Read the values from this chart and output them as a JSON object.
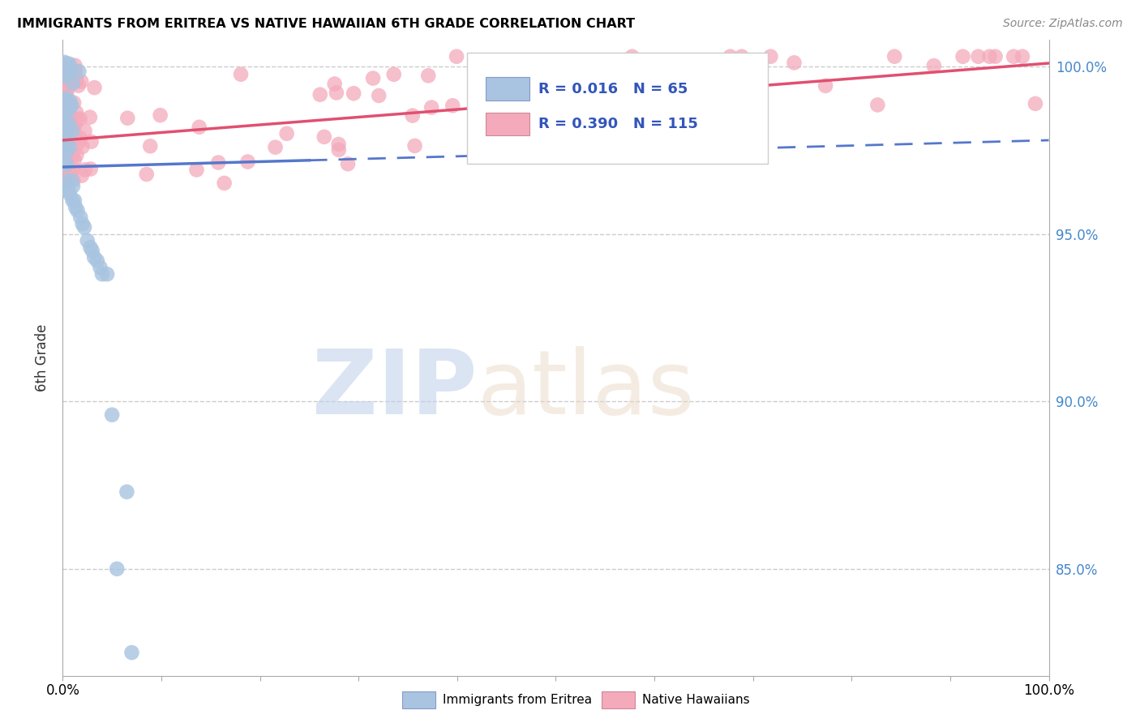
{
  "title": "IMMIGRANTS FROM ERITREA VS NATIVE HAWAIIAN 6TH GRADE CORRELATION CHART",
  "source": "Source: ZipAtlas.com",
  "ylabel": "6th Grade",
  "ytick_labels": [
    "85.0%",
    "90.0%",
    "95.0%",
    "100.0%"
  ],
  "ytick_values": [
    0.85,
    0.9,
    0.95,
    1.0
  ],
  "xlim": [
    0.0,
    1.0
  ],
  "ylim": [
    0.818,
    1.008
  ],
  "legend_r_blue": "0.016",
  "legend_n_blue": "65",
  "legend_r_pink": "0.390",
  "legend_n_pink": "115",
  "legend_label_blue": "Immigrants from Eritrea",
  "legend_label_pink": "Native Hawaiians",
  "blue_color": "#A8C4E0",
  "pink_color": "#F4AABB",
  "blue_line_color": "#5577CC",
  "pink_line_color": "#E05070",
  "grid_color": "#CCCCCC",
  "blue_line_solid_end": 0.25,
  "blue_line_start_y": 0.97,
  "blue_line_end_y": 0.978,
  "pink_line_start_y": 0.978,
  "pink_line_end_y": 1.001
}
